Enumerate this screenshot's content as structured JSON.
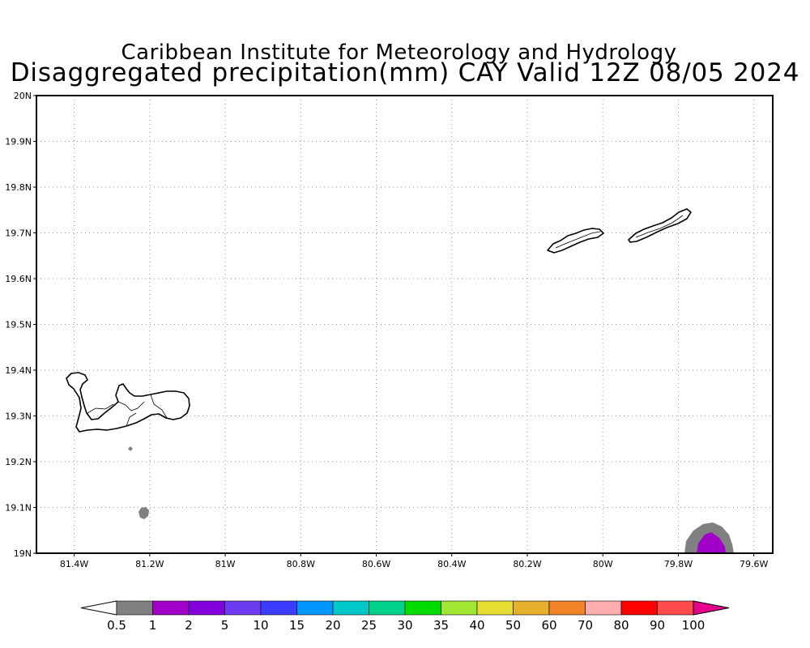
{
  "title": {
    "line1": "Caribbean Institute for Meteorology and Hydrology",
    "line2": "Disaggregated precipitation(mm) CAY Valid 12Z 08/05 2024"
  },
  "map": {
    "lon_range": [
      -81.5,
      -79.55
    ],
    "lat_range": [
      19.0,
      20.0
    ],
    "grid": true,
    "lat_ticks": [
      {
        "value": 20.0,
        "label": "20N"
      },
      {
        "value": 19.9,
        "label": "19.9N"
      },
      {
        "value": 19.8,
        "label": "19.8N"
      },
      {
        "value": 19.7,
        "label": "19.7N"
      },
      {
        "value": 19.6,
        "label": "19.6N"
      },
      {
        "value": 19.5,
        "label": "19.5N"
      },
      {
        "value": 19.4,
        "label": "19.4N"
      },
      {
        "value": 19.3,
        "label": "19.3N"
      },
      {
        "value": 19.2,
        "label": "19.2N"
      },
      {
        "value": 19.1,
        "label": "19.1N"
      },
      {
        "value": 19.0,
        "label": "19N"
      }
    ],
    "lon_ticks": [
      {
        "value": -81.4,
        "label": "81.4W"
      },
      {
        "value": -81.2,
        "label": "81.2W"
      },
      {
        "value": -81.0,
        "label": "81W"
      },
      {
        "value": -80.8,
        "label": "80.8W"
      },
      {
        "value": -80.6,
        "label": "80.6W"
      },
      {
        "value": -80.4,
        "label": "80.4W"
      },
      {
        "value": -80.2,
        "label": "80.2W"
      },
      {
        "value": -80.0,
        "label": "80W"
      },
      {
        "value": -79.8,
        "label": "79.8W"
      },
      {
        "value": -79.6,
        "label": "79.6W"
      }
    ]
  },
  "colorbar": {
    "labels": [
      "0.5",
      "1",
      "2",
      "5",
      "10",
      "15",
      "20",
      "25",
      "30",
      "35",
      "40",
      "50",
      "60",
      "70",
      "80",
      "90",
      "100"
    ],
    "under_color": "#ffffff",
    "colors": [
      "#808080",
      "#a000c8",
      "#8200dc",
      "#6e3cf0",
      "#3c3cff",
      "#0096ff",
      "#00c8c8",
      "#00d28c",
      "#00dc00",
      "#a0e632",
      "#e6dc32",
      "#e6af2d",
      "#f08228",
      "#ffafaf",
      "#ff0000",
      "#ff4b4b"
    ],
    "over_color": "#e6008c"
  },
  "precip_colors": {
    "light": "#808080",
    "moderate": "#a000c8"
  }
}
